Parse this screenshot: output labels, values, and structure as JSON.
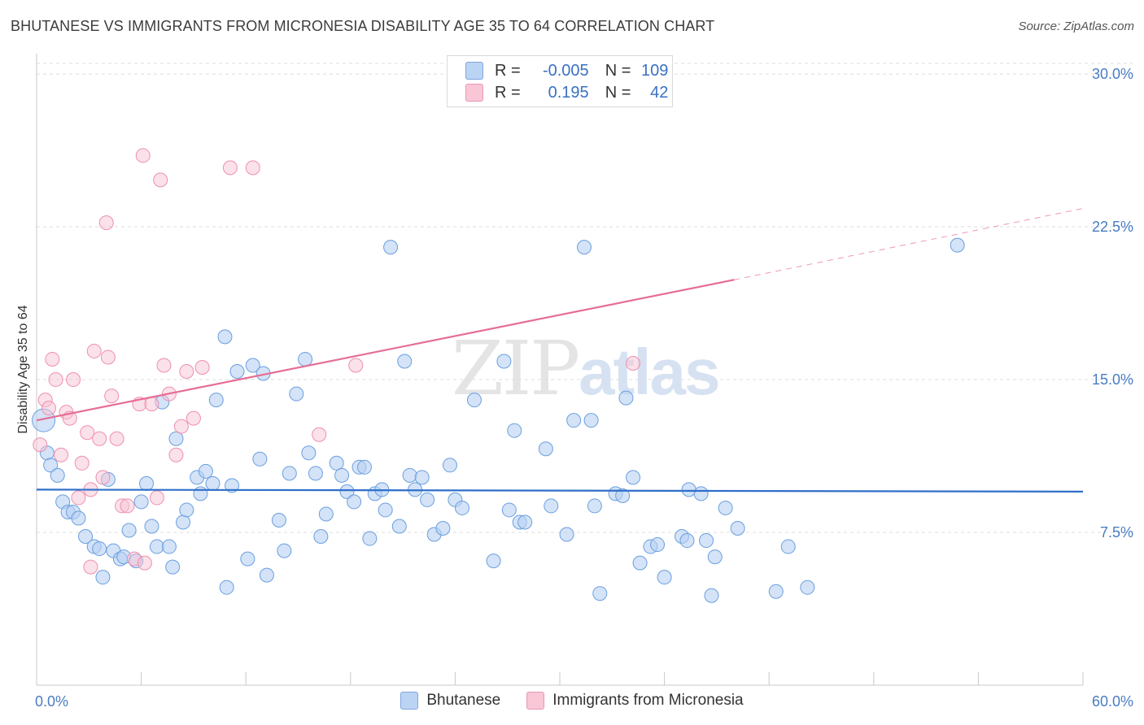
{
  "title": "BHUTANESE VS IMMIGRANTS FROM MICRONESIA DISABILITY AGE 35 TO 64 CORRELATION CHART",
  "source": "Source: ZipAtlas.com",
  "watermark": {
    "zip": "ZIP",
    "atlas": "atlas"
  },
  "legend": {
    "rows": [
      {
        "r_label": "R =",
        "r_value": "-0.005",
        "n_label": "N =",
        "n_value": "109"
      },
      {
        "r_label": "R =",
        "r_value": "0.195",
        "n_label": "N =",
        "n_value": "42"
      }
    ]
  },
  "bottom_legend": [
    "Bhutanese",
    "Immigrants from Micronesia"
  ],
  "colors": {
    "blue": "#6a9fe0",
    "pink": "#ee8fb0",
    "blue_line": "#2f6fc9",
    "pink_line": "#e66d96"
  },
  "chart_data": {
    "type": "scatter",
    "title": "BHUTANESE VS IMMIGRANTS FROM MICRONESIA DISABILITY AGE 35 TO 64 CORRELATION CHART",
    "xlabel": "",
    "ylabel": "Disability Age 35 to 64",
    "xlim": [
      0,
      60
    ],
    "ylim": [
      0,
      31
    ],
    "x_tick_labels": [
      "0.0%",
      "60.0%"
    ],
    "y_ticks": [
      7.5,
      15.0,
      22.5,
      30.0
    ],
    "y_tick_labels": [
      "7.5%",
      "15.0%",
      "22.5%",
      "30.0%"
    ],
    "grid": "horizontal dashed",
    "series": [
      {
        "name": "Bhutanese",
        "trend": [
          [
            0,
            9.6
          ],
          [
            60,
            9.5
          ]
        ],
        "points": [
          [
            0.4,
            13.0
          ],
          [
            0.6,
            11.4
          ],
          [
            0.8,
            10.8
          ],
          [
            1.2,
            10.3
          ],
          [
            1.5,
            9.0
          ],
          [
            1.8,
            8.5
          ],
          [
            2.1,
            8.5
          ],
          [
            2.4,
            8.2
          ],
          [
            2.8,
            7.3
          ],
          [
            3.3,
            6.8
          ],
          [
            3.6,
            6.7
          ],
          [
            3.8,
            5.3
          ],
          [
            4.1,
            10.1
          ],
          [
            4.4,
            6.6
          ],
          [
            4.8,
            6.2
          ],
          [
            5.0,
            6.3
          ],
          [
            5.3,
            7.6
          ],
          [
            5.7,
            6.1
          ],
          [
            6.0,
            9.0
          ],
          [
            6.3,
            9.9
          ],
          [
            6.6,
            7.8
          ],
          [
            6.9,
            6.8
          ],
          [
            7.2,
            13.9
          ],
          [
            7.6,
            6.8
          ],
          [
            7.8,
            5.8
          ],
          [
            8.0,
            12.1
          ],
          [
            8.4,
            8.0
          ],
          [
            8.6,
            8.6
          ],
          [
            9.2,
            10.2
          ],
          [
            9.4,
            9.4
          ],
          [
            9.7,
            10.5
          ],
          [
            10.1,
            9.9
          ],
          [
            10.3,
            14.0
          ],
          [
            10.9,
            4.8
          ],
          [
            11.2,
            9.8
          ],
          [
            10.8,
            17.1
          ],
          [
            11.5,
            15.4
          ],
          [
            12.1,
            6.2
          ],
          [
            12.4,
            15.7
          ],
          [
            12.8,
            11.1
          ],
          [
            13.2,
            5.4
          ],
          [
            13.0,
            15.3
          ],
          [
            13.9,
            8.1
          ],
          [
            14.2,
            6.6
          ],
          [
            14.5,
            10.4
          ],
          [
            14.9,
            14.3
          ],
          [
            15.4,
            16.0
          ],
          [
            15.6,
            11.4
          ],
          [
            16.0,
            10.4
          ],
          [
            16.3,
            7.3
          ],
          [
            16.6,
            8.4
          ],
          [
            17.2,
            10.9
          ],
          [
            17.5,
            10.3
          ],
          [
            17.8,
            9.5
          ],
          [
            18.2,
            9.0
          ],
          [
            18.5,
            10.7
          ],
          [
            18.8,
            10.7
          ],
          [
            19.1,
            7.2
          ],
          [
            19.4,
            9.4
          ],
          [
            19.8,
            9.6
          ],
          [
            20.0,
            8.6
          ],
          [
            20.3,
            21.5
          ],
          [
            20.8,
            7.8
          ],
          [
            21.1,
            15.9
          ],
          [
            21.4,
            10.3
          ],
          [
            21.7,
            9.6
          ],
          [
            22.1,
            10.2
          ],
          [
            22.4,
            9.1
          ],
          [
            22.8,
            7.4
          ],
          [
            23.3,
            7.7
          ],
          [
            23.7,
            10.8
          ],
          [
            24.0,
            9.1
          ],
          [
            24.4,
            8.7
          ],
          [
            25.1,
            14.0
          ],
          [
            26.2,
            6.1
          ],
          [
            26.8,
            15.9
          ],
          [
            27.1,
            8.6
          ],
          [
            27.4,
            12.5
          ],
          [
            27.7,
            8.0
          ],
          [
            28.0,
            8.0
          ],
          [
            29.2,
            11.6
          ],
          [
            29.5,
            8.8
          ],
          [
            30.4,
            7.4
          ],
          [
            30.8,
            13.0
          ],
          [
            31.4,
            21.5
          ],
          [
            31.8,
            13.0
          ],
          [
            32.0,
            8.8
          ],
          [
            32.3,
            4.5
          ],
          [
            33.2,
            9.4
          ],
          [
            33.6,
            9.3
          ],
          [
            33.8,
            14.1
          ],
          [
            34.2,
            10.2
          ],
          [
            34.6,
            6.0
          ],
          [
            35.2,
            6.8
          ],
          [
            35.6,
            6.9
          ],
          [
            36.0,
            5.3
          ],
          [
            37.0,
            7.3
          ],
          [
            37.3,
            7.1
          ],
          [
            37.4,
            9.6
          ],
          [
            38.1,
            9.4
          ],
          [
            38.4,
            7.1
          ],
          [
            38.7,
            4.4
          ],
          [
            38.9,
            6.3
          ],
          [
            39.5,
            8.7
          ],
          [
            40.2,
            7.7
          ],
          [
            42.4,
            4.6
          ],
          [
            43.1,
            6.8
          ],
          [
            44.2,
            4.8
          ],
          [
            52.8,
            21.6
          ]
        ]
      },
      {
        "name": "Immigrants from Micronesia",
        "trend": [
          [
            0,
            13.0
          ],
          [
            40,
            19.9
          ]
        ],
        "trend_extension": [
          [
            40,
            19.9
          ],
          [
            60,
            23.4
          ]
        ],
        "points": [
          [
            0.2,
            11.8
          ],
          [
            0.5,
            14.0
          ],
          [
            0.7,
            13.6
          ],
          [
            0.9,
            16.0
          ],
          [
            1.1,
            15.0
          ],
          [
            1.4,
            11.3
          ],
          [
            1.7,
            13.4
          ],
          [
            1.9,
            13.1
          ],
          [
            2.1,
            15.0
          ],
          [
            2.4,
            9.2
          ],
          [
            2.6,
            10.9
          ],
          [
            2.9,
            12.4
          ],
          [
            3.1,
            9.6
          ],
          [
            3.3,
            16.4
          ],
          [
            3.6,
            12.1
          ],
          [
            3.8,
            10.2
          ],
          [
            4.1,
            16.1
          ],
          [
            4.3,
            14.2
          ],
          [
            4.6,
            12.1
          ],
          [
            4.9,
            8.8
          ],
          [
            5.2,
            8.8
          ],
          [
            5.6,
            6.2
          ],
          [
            5.9,
            13.8
          ],
          [
            6.2,
            6.0
          ],
          [
            6.6,
            13.8
          ],
          [
            6.9,
            9.2
          ],
          [
            7.3,
            15.7
          ],
          [
            7.6,
            14.3
          ],
          [
            8.0,
            11.3
          ],
          [
            8.3,
            12.7
          ],
          [
            8.6,
            15.4
          ],
          [
            9.0,
            13.1
          ],
          [
            9.5,
            15.6
          ],
          [
            4.0,
            22.7
          ],
          [
            6.1,
            26.0
          ],
          [
            7.1,
            24.8
          ],
          [
            11.1,
            25.4
          ],
          [
            12.4,
            25.4
          ],
          [
            16.2,
            12.3
          ],
          [
            18.3,
            15.7
          ],
          [
            34.2,
            15.8
          ],
          [
            3.1,
            5.8
          ]
        ]
      }
    ]
  }
}
